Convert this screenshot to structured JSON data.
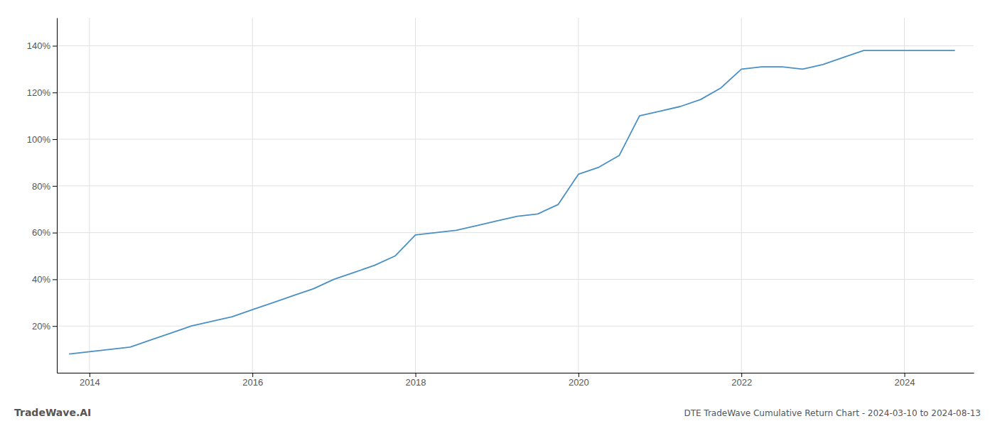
{
  "chart_data": {
    "type": "line",
    "title": "DTE TradeWave Cumulative Return Chart - 2024-03-10 to 2024-08-13",
    "annotations": [
      "TradeWave.AI"
    ],
    "color": "#4a90c4",
    "x": [
      2013.75,
      2014.0,
      2014.25,
      2014.5,
      2014.75,
      2015.0,
      2015.25,
      2015.5,
      2015.75,
      2016.0,
      2016.25,
      2016.5,
      2016.75,
      2017.0,
      2017.25,
      2017.5,
      2017.75,
      2018.0,
      2018.25,
      2018.5,
      2018.75,
      2019.0,
      2019.25,
      2019.5,
      2019.75,
      2020.0,
      2020.25,
      2020.5,
      2020.75,
      2021.0,
      2021.25,
      2021.5,
      2021.75,
      2022.0,
      2022.25,
      2022.5,
      2022.75,
      2023.0,
      2023.25,
      2023.5,
      2023.75,
      2024.0,
      2024.25,
      2024.5,
      2024.62
    ],
    "values": [
      8,
      9,
      10,
      11,
      14,
      17,
      20,
      22,
      24,
      27,
      30,
      33,
      36,
      40,
      43,
      46,
      50,
      59,
      60,
      61,
      63,
      65,
      67,
      68,
      72,
      85,
      88,
      93,
      110,
      112,
      114,
      117,
      122,
      130,
      131,
      131,
      130,
      132,
      135,
      138,
      138,
      138,
      138,
      138,
      138
    ],
    "xlim": [
      2013.6,
      2024.85
    ],
    "ylim": [
      0,
      152
    ],
    "xticks": [
      2014,
      2016,
      2018,
      2020,
      2022,
      2024
    ],
    "yticks": [
      {
        "value": 20,
        "label": "20%"
      },
      {
        "value": 40,
        "label": "40%"
      },
      {
        "value": 60,
        "label": "60%"
      },
      {
        "value": 80,
        "label": "80%"
      },
      {
        "value": 100,
        "label": "100%"
      },
      {
        "value": 120,
        "label": "120%"
      },
      {
        "value": 140,
        "label": "140%"
      }
    ],
    "grid": true
  }
}
